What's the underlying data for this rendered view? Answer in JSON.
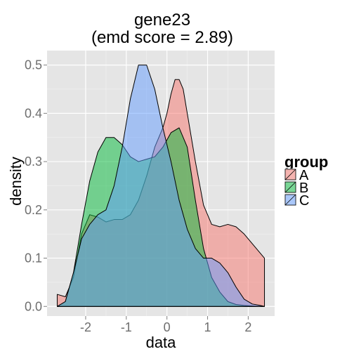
{
  "chart_data": {
    "type": "area",
    "title_lines": [
      "gene23",
      "(emd score = 2.89)"
    ],
    "xlabel": "data",
    "ylabel": "density",
    "xlim": [
      -2.95,
      2.65
    ],
    "ylim": [
      -0.02,
      0.53
    ],
    "x_ticks": [
      -2,
      -1,
      0,
      1,
      2
    ],
    "x_tick_labels": [
      "-2",
      "-1",
      "0",
      "1",
      "2"
    ],
    "y_ticks": [
      0.0,
      0.1,
      0.2,
      0.3,
      0.4,
      0.5
    ],
    "y_tick_labels": [
      "0.0",
      "0.1",
      "0.2",
      "0.3",
      "0.4",
      "0.5"
    ],
    "grid": true,
    "legend": {
      "title": "group",
      "position": "right"
    },
    "series": [
      {
        "name": "A",
        "color": "#F8766D",
        "x": [
          -2.7,
          -2.5,
          -2.3,
          -2.1,
          -1.9,
          -1.7,
          -1.5,
          -1.3,
          -1.1,
          -0.9,
          -0.7,
          -0.5,
          -0.3,
          -0.1,
          0.0,
          0.1,
          0.2,
          0.3,
          0.4,
          0.5,
          0.7,
          0.9,
          1.1,
          1.3,
          1.5,
          1.7,
          1.9,
          2.1,
          2.3,
          2.4
        ],
        "y": [
          0.025,
          0.02,
          0.06,
          0.15,
          0.19,
          0.185,
          0.175,
          0.18,
          0.18,
          0.19,
          0.22,
          0.27,
          0.33,
          0.37,
          0.4,
          0.44,
          0.47,
          0.47,
          0.45,
          0.4,
          0.3,
          0.21,
          0.17,
          0.165,
          0.17,
          0.165,
          0.15,
          0.13,
          0.11,
          0.1
        ]
      },
      {
        "name": "B",
        "color": "#00BA38",
        "x": [
          -2.7,
          -2.5,
          -2.3,
          -2.1,
          -1.9,
          -1.7,
          -1.5,
          -1.3,
          -1.1,
          -0.9,
          -0.7,
          -0.5,
          -0.3,
          -0.1,
          0.1,
          0.3,
          0.5,
          0.7,
          0.9,
          1.1,
          1.3,
          1.5,
          1.7,
          1.9,
          2.1,
          2.3,
          2.4
        ],
        "y": [
          0.0,
          0.01,
          0.07,
          0.17,
          0.26,
          0.32,
          0.35,
          0.35,
          0.335,
          0.31,
          0.3,
          0.305,
          0.31,
          0.33,
          0.36,
          0.37,
          0.33,
          0.22,
          0.12,
          0.06,
          0.03,
          0.01,
          0.004,
          0.002,
          0.001,
          0.0,
          0.0
        ]
      },
      {
        "name": "C",
        "color": "#619CFF",
        "x": [
          -2.7,
          -2.5,
          -2.3,
          -2.1,
          -1.9,
          -1.7,
          -1.5,
          -1.3,
          -1.1,
          -0.9,
          -0.7,
          -0.5,
          -0.3,
          -0.1,
          0.1,
          0.3,
          0.5,
          0.7,
          0.9,
          1.1,
          1.3,
          1.5,
          1.7,
          1.9,
          2.1,
          2.3,
          2.4
        ],
        "y": [
          0.0,
          0.01,
          0.07,
          0.14,
          0.17,
          0.19,
          0.2,
          0.25,
          0.33,
          0.43,
          0.5,
          0.5,
          0.45,
          0.37,
          0.3,
          0.22,
          0.16,
          0.12,
          0.1,
          0.1,
          0.09,
          0.07,
          0.04,
          0.015,
          0.005,
          0.002,
          0.0
        ]
      }
    ]
  }
}
